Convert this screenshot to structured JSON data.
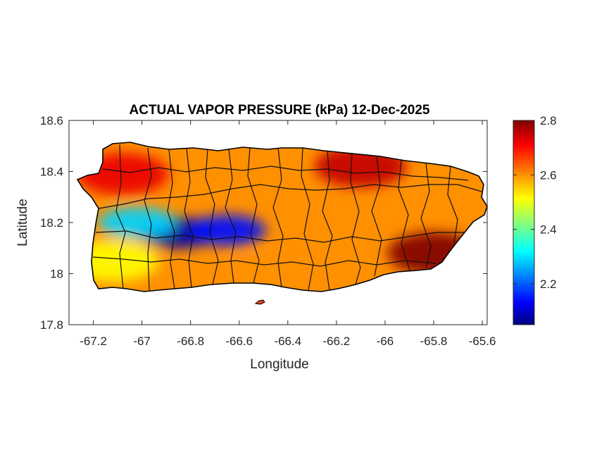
{
  "chart_data": {
    "type": "heatmap",
    "title": "ACTUAL VAPOR PRESSURE (kPa) 12-Dec-2025",
    "xlabel": "Longitude",
    "ylabel": "Latitude",
    "xlim": [
      -67.3,
      -65.58
    ],
    "ylim": [
      17.8,
      18.6
    ],
    "xticks": [
      -67.2,
      -67,
      -66.8,
      -66.6,
      -66.4,
      -66.2,
      -66,
      -65.8,
      -65.6
    ],
    "yticks": [
      18.6,
      18.4,
      18.2,
      18,
      17.8
    ],
    "xtick_labels": [
      "-67.2",
      "-67",
      "-66.8",
      "-66.6",
      "-66.4",
      "-66.2",
      "-66",
      "-65.8",
      "-65.6"
    ],
    "ytick_labels": [
      "18.6",
      "18.4",
      "18.2",
      "18",
      "17.8"
    ],
    "colorbar": {
      "colormap": "jet",
      "range": [
        2.05,
        2.8
      ],
      "ticks": [
        2.8,
        2.6,
        2.4,
        2.2
      ],
      "tick_labels": [
        "2.8",
        "2.6",
        "2.4",
        "2.2"
      ]
    },
    "grid": false,
    "field": {
      "region": "Puerto Rico",
      "features": [
        {
          "type": "minimum",
          "lon": -66.85,
          "lat": 18.16,
          "value": 2.08
        },
        {
          "type": "minimum",
          "lon": -66.65,
          "lat": 18.17,
          "value": 2.15
        },
        {
          "type": "low",
          "lon": -67.02,
          "lat": 18.2,
          "value": 2.3
        },
        {
          "type": "maximum",
          "lon": -65.8,
          "lat": 18.08,
          "value": 2.8
        },
        {
          "type": "high",
          "lon": -66.1,
          "lat": 18.42,
          "value": 2.75
        },
        {
          "type": "high",
          "lon": -67.08,
          "lat": 18.39,
          "value": 2.72
        },
        {
          "type": "moderate",
          "lon": -67.12,
          "lat": 18.05,
          "value": 2.52
        },
        {
          "type": "moderate",
          "lon": -66.5,
          "lat": 17.98,
          "value": 2.6
        }
      ]
    }
  }
}
